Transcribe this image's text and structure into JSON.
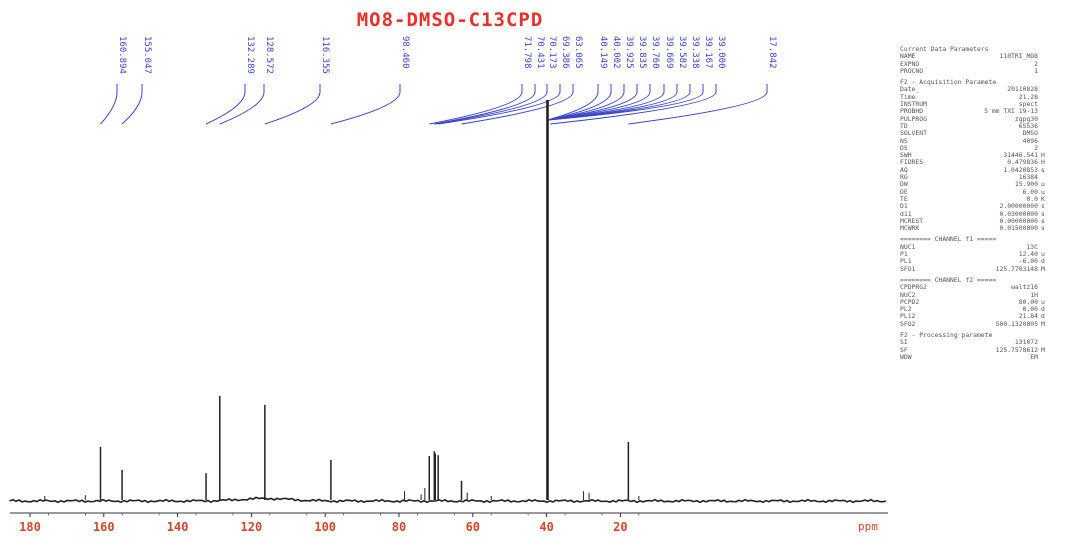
{
  "chart_data": {
    "type": "line",
    "title": "MO8-DMSO-C13CPD",
    "x_unit": "ppm",
    "xlim": [
      185,
      -5
    ],
    "x_reversed": true,
    "x_ticks": [
      180,
      160,
      140,
      120,
      100,
      80,
      60,
      40,
      20
    ],
    "y_relative_max": 1.0,
    "peak_labels": [
      "160.894",
      "155.047",
      "132.289",
      "128.572",
      "116.355",
      "98.460",
      "71.798",
      "70.431",
      "70.173",
      "69.386",
      "63.065",
      "40.149",
      "40.002",
      "39.925",
      "39.835",
      "39.760",
      "39.669",
      "39.582",
      "39.338",
      "39.167",
      "39.000",
      "17.842"
    ],
    "peaks": [
      {
        "ppm": 160.894,
        "height": 0.133
      },
      {
        "ppm": 155.047,
        "height": 0.075
      },
      {
        "ppm": 132.289,
        "height": 0.067
      },
      {
        "ppm": 128.572,
        "height": 0.26
      },
      {
        "ppm": 116.355,
        "height": 0.238
      },
      {
        "ppm": 98.46,
        "height": 0.1
      },
      {
        "ppm": 71.798,
        "height": 0.11
      },
      {
        "ppm": 70.431,
        "height": 0.122
      },
      {
        "ppm": 70.173,
        "height": 0.116
      },
      {
        "ppm": 69.386,
        "height": 0.112
      },
      {
        "ppm": 63.065,
        "height": 0.048
      },
      {
        "ppm": 39.76,
        "height": 1.0
      },
      {
        "ppm": 17.842,
        "height": 0.145
      }
    ],
    "minor_peaks": [
      {
        "ppm": 176.0,
        "height": 0.01
      },
      {
        "ppm": 165.0,
        "height": 0.012
      },
      {
        "ppm": 78.5,
        "height": 0.022
      },
      {
        "ppm": 74.0,
        "height": 0.014
      },
      {
        "ppm": 73.0,
        "height": 0.03
      },
      {
        "ppm": 61.5,
        "height": 0.018
      },
      {
        "ppm": 55.0,
        "height": 0.01
      },
      {
        "ppm": 30.0,
        "height": 0.022
      },
      {
        "ppm": 28.5,
        "height": 0.018
      },
      {
        "ppm": 15.0,
        "height": 0.01
      }
    ],
    "grid": false,
    "legend": "none"
  },
  "params_panel": {
    "sections": [
      {
        "header": "Current Data Parameters",
        "rows": [
          [
            "NAME",
            "110TRI_MO8",
            ""
          ],
          [
            "EXPNO",
            "2",
            ""
          ],
          [
            "PROCNO",
            "1",
            ""
          ]
        ]
      },
      {
        "header": "F2 - Acquisition Paramete",
        "rows": [
          [
            "Date_",
            "20110828",
            ""
          ],
          [
            "Time",
            "21.28",
            ""
          ],
          [
            "INSTRUM",
            "spect",
            ""
          ],
          [
            "PROBHD",
            "5 mm TXI 19-13",
            ""
          ],
          [
            "PULPROG",
            "zgpg30",
            ""
          ],
          [
            "TD",
            "65536",
            ""
          ],
          [
            "SOLVENT",
            "DMSO",
            ""
          ],
          [
            "NS",
            "4096",
            ""
          ],
          [
            "DS",
            "2",
            ""
          ],
          [
            "SWH",
            "31446.541",
            "H"
          ],
          [
            "FIDRES",
            "0.479836",
            "H"
          ],
          [
            "AQ",
            "1.0420853",
            "s"
          ],
          [
            "RG",
            "16384",
            ""
          ],
          [
            "DW",
            "15.900",
            "u"
          ],
          [
            "DE",
            "6.00",
            "u"
          ],
          [
            "TE",
            "0.0",
            "K"
          ],
          [
            "D1",
            "2.00000000",
            "s"
          ],
          [
            "d11",
            "0.03000000",
            "s"
          ],
          [
            "MCREST",
            "0.00000000",
            "s"
          ],
          [
            "MCWRK",
            "0.01500000",
            "s"
          ]
        ]
      },
      {
        "header": "======== CHANNEL f1 =====",
        "rows": [
          [
            "NUC1",
            "13C",
            ""
          ],
          [
            "P1",
            "12.40",
            "u"
          ],
          [
            "PL1",
            "-6.00",
            "d"
          ],
          [
            "SFO1",
            "125.7703148",
            "M"
          ]
        ]
      },
      {
        "header": "======== CHANNEL f2 =====",
        "rows": [
          [
            "CPDPRG2",
            "waltz16",
            ""
          ],
          [
            "NUC2",
            "1H",
            ""
          ],
          [
            "PCPD2",
            "80.00",
            "u"
          ],
          [
            "PL2",
            "0.00",
            "d"
          ],
          [
            "PL12",
            "21.84",
            "d"
          ],
          [
            "SFO2",
            "500.1320005",
            "M"
          ]
        ]
      },
      {
        "header": "F2 - Processing paramete",
        "rows": [
          [
            "SI",
            "131072",
            ""
          ],
          [
            "SF",
            "125.7578612",
            "M"
          ],
          [
            "WDW",
            "EM",
            ""
          ],
          [
            "SSB",
            "0",
            ""
          ],
          [
            "LB",
            "0.30",
            "H"
          ],
          [
            "GB",
            "0",
            ""
          ],
          [
            "PC",
            "1.00",
            ""
          ]
        ]
      }
    ]
  }
}
